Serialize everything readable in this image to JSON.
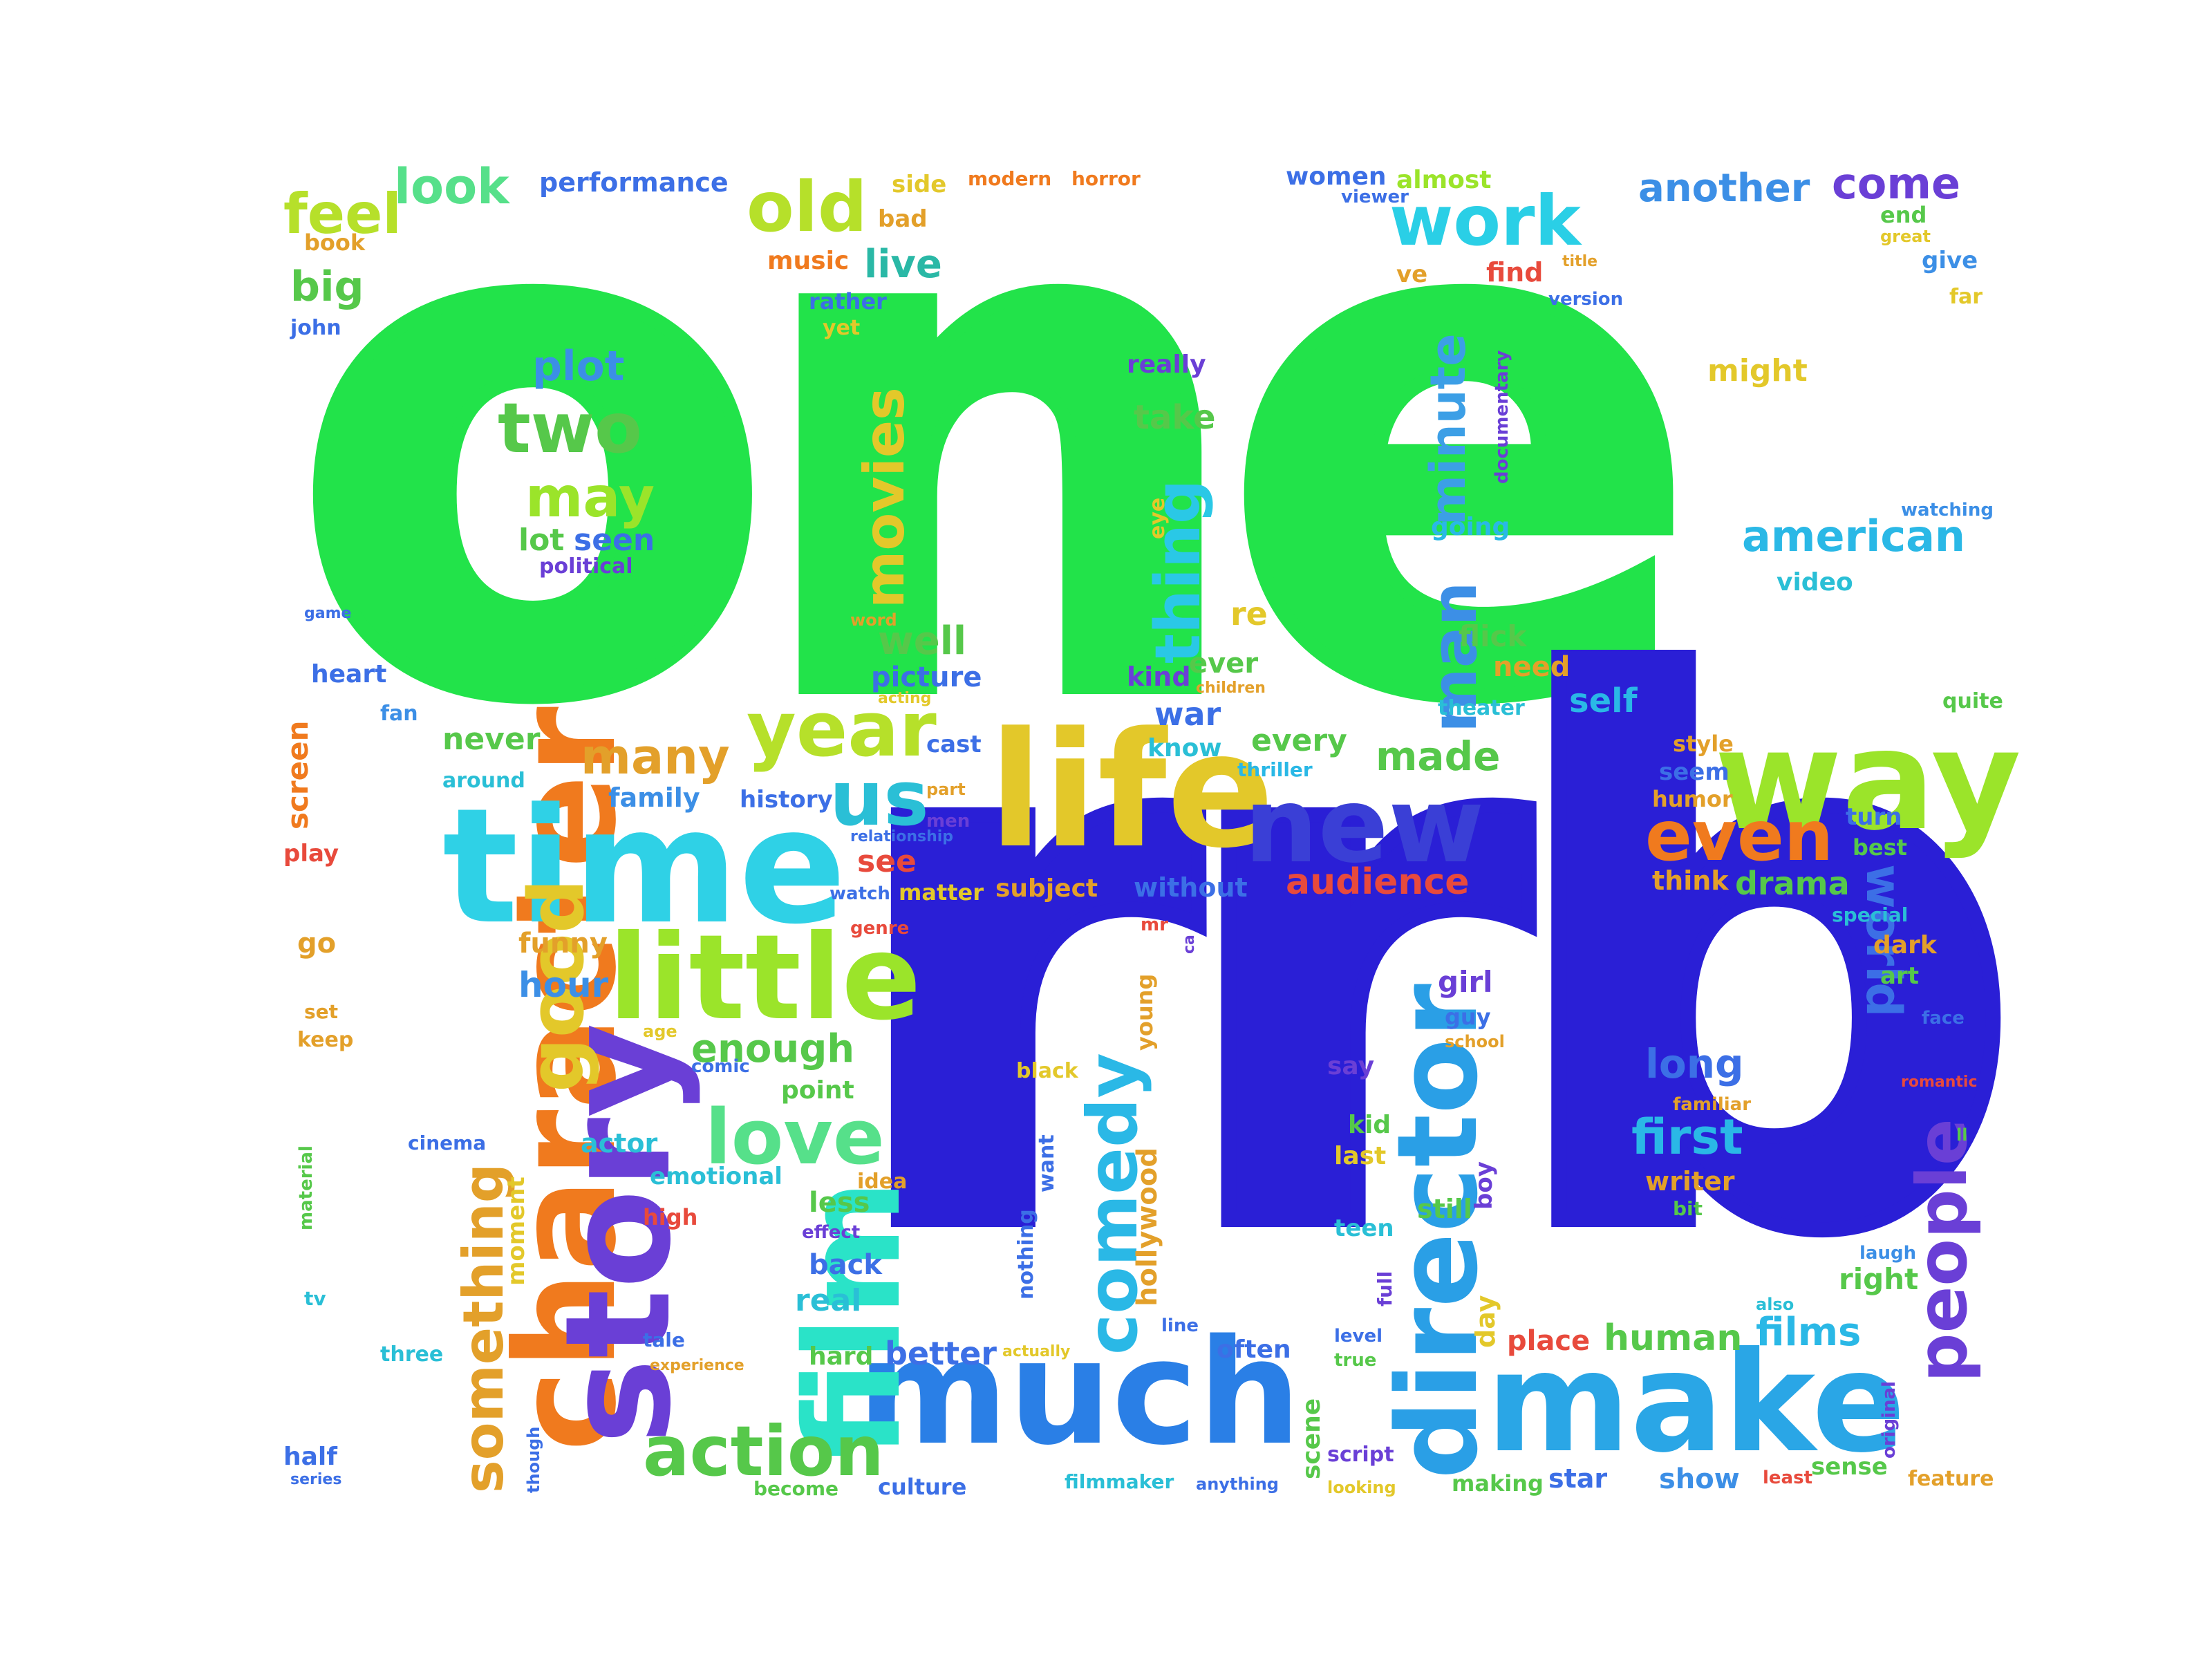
{
  "colors": {
    "green": "#22e34a",
    "blue": "#2a1fd6",
    "orange": "#f07a1e",
    "cyan": "#2fd1e6",
    "lime": "#9be42a",
    "yellow": "#e3c82a",
    "teal": "#3fd6a8",
    "sky": "#3c8fe6",
    "purple": "#6a3fd6",
    "red": "#e84a3c",
    "mint": "#56e08a"
  },
  "words": {
    "one": "one",
    "rrb": "rrb",
    "character": "character",
    "time": "time",
    "life": "life",
    "much": "much",
    "make": "make",
    "story": "story",
    "way": "way",
    "little": "little",
    "film": "film",
    "director": "director",
    "new": "new",
    "year": "year",
    "us": "us",
    "comedy": "comedy",
    "love": "love",
    "people": "people",
    "world": "world",
    "even": "even",
    "good": "good",
    "something": "something",
    "action": "action",
    "man": "man",
    "minute": "minute",
    "movies": "movies",
    "thing": "thing",
    "work": "work",
    "old": "old",
    "two": "two",
    "may": "may",
    "plot": "plot",
    "lot": "lot",
    "seen": "seen",
    "political": "political",
    "feel": "feel",
    "look": "look",
    "performance": "performance",
    "big": "big",
    "book": "book",
    "john": "john",
    "live": "live",
    "music": "music",
    "rather": "rather",
    "yet": "yet",
    "side": "side",
    "bad": "bad",
    "modern": "modern",
    "horror": "horror",
    "women": "women",
    "viewer": "viewer",
    "almost": "almost",
    "another": "another",
    "come": "come",
    "end": "end",
    "great": "great",
    "give": "give",
    "far": "far",
    "ve": "ve",
    "find": "find",
    "title": "title",
    "version": "version",
    "might": "might",
    "documentary": "documentary",
    "really": "really",
    "take": "take",
    "eye": "eye",
    "going": "going",
    "american": "american",
    "watching": "watching",
    "video": "video",
    "flick": "flick",
    "re": "re",
    "well": "well",
    "word": "word",
    "picture": "picture",
    "acting": "acting",
    "heart": "heart",
    "fan": "fan",
    "screen": "screen",
    "game": "game",
    "ever": "ever",
    "children": "children",
    "kind": "kind",
    "need": "need",
    "theater": "theater",
    "quite": "quite",
    "war": "war",
    "self": "self",
    "never": "never",
    "many": "many",
    "cast": "cast",
    "every": "every",
    "made": "made",
    "know": "know",
    "thriller": "thriller",
    "around": "around",
    "family": "family",
    "history": "history",
    "part": "part",
    "men": "men",
    "relationship": "relationship",
    "style": "style",
    "seem": "seem",
    "humor": "humor",
    "turn": "turn",
    "best": "best",
    "play": "play",
    "see": "see",
    "watch": "watch",
    "matter": "matter",
    "subject": "subject",
    "without": "without",
    "audience": "audience",
    "think": "think",
    "drama": "drama",
    "special": "special",
    "dark": "dark",
    "art": "art",
    "go": "go",
    "funny": "funny",
    "genre": "genre",
    "mr": "mr",
    "ca": "ca",
    "hour": "hour",
    "set": "set",
    "keep": "keep",
    "age": "age",
    "enough": "enough",
    "young": "young",
    "girl": "girl",
    "guy": "guy",
    "face": "face",
    "school": "school",
    "say": "say",
    "long": "long",
    "romantic": "romantic",
    "comic": "comic",
    "point": "point",
    "black": "black",
    "familiar": "familiar",
    "cinema": "cinema",
    "actor": "actor",
    "kid": "kid",
    "first": "first",
    "ll": "ll",
    "material": "material",
    "emotional": "emotional",
    "idea": "idea",
    "want": "want",
    "hollywood": "hollywood",
    "last": "last",
    "boy": "boy",
    "writer": "writer",
    "moment": "moment",
    "high": "high",
    "less": "less",
    "nothing": "nothing",
    "bit": "bit",
    "teen": "teen",
    "still": "still",
    "effect": "effect",
    "back": "back",
    "laugh": "laugh",
    "tv": "tv",
    "real": "real",
    "full": "full",
    "right": "right",
    "day": "day",
    "also": "also",
    "three": "three",
    "tale": "tale",
    "hard": "hard",
    "better": "better",
    "actually": "actually",
    "line": "line",
    "often": "often",
    "level": "level",
    "true": "true",
    "place": "place",
    "human": "human",
    "films": "films",
    "original": "original",
    "experience": "experience",
    "half": "half",
    "series": "series",
    "though": "though",
    "become": "become",
    "culture": "culture",
    "filmmaker": "filmmaker",
    "anything": "anything",
    "scene": "scene",
    "script": "script",
    "looking": "looking",
    "making": "making",
    "star": "star",
    "show": "show",
    "least": "least",
    "sense": "sense",
    "feature": "feature"
  }
}
